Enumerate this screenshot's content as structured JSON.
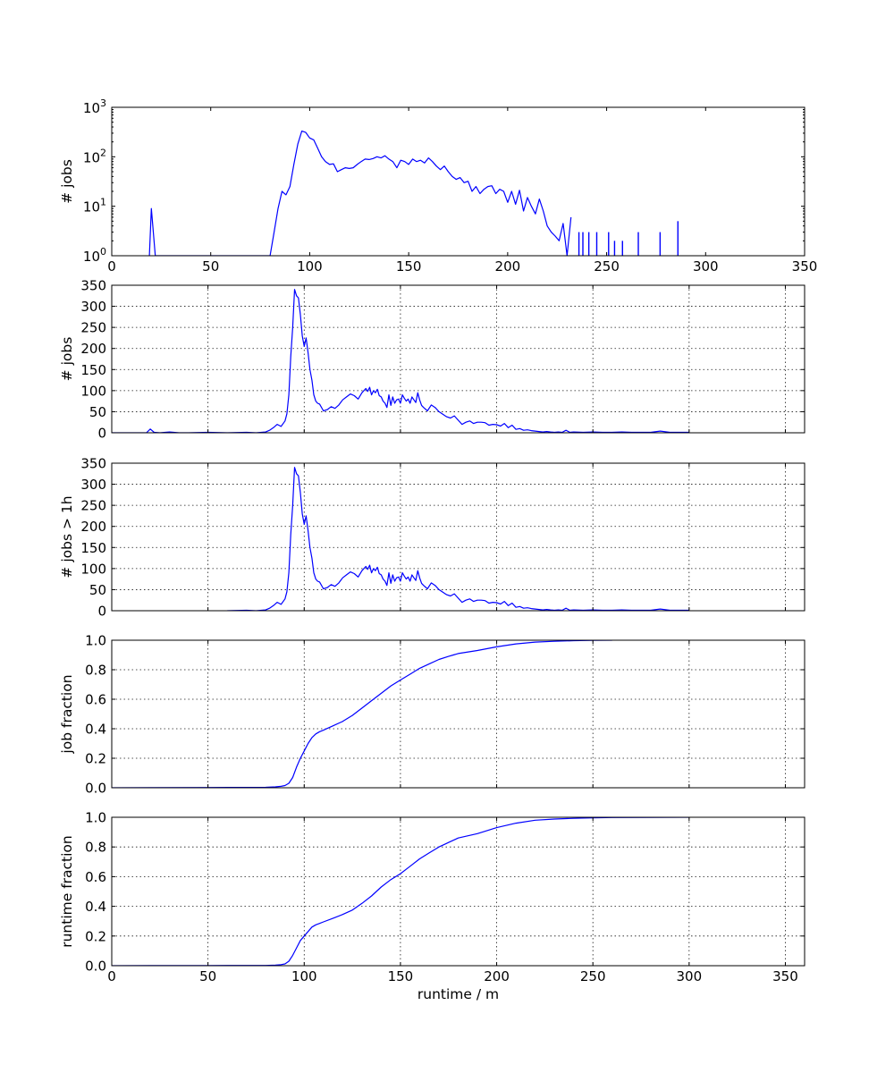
{
  "style": {
    "line_color": "#0000ff",
    "background": "#ffffff"
  },
  "chart_data": [
    {
      "type": "line",
      "id": "hist-log",
      "xlabel": "",
      "ylabel": "# jobs",
      "xlim": [
        0,
        350
      ],
      "ylim": [
        1,
        1000
      ],
      "yscale": "log",
      "grid": false,
      "xticks": [
        "0",
        "50",
        "100",
        "150",
        "200",
        "250",
        "300",
        "350"
      ],
      "yticks": [
        {
          "value": 1,
          "base": "10",
          "exp": "0"
        },
        {
          "value": 10,
          "base": "10",
          "exp": "1"
        },
        {
          "value": 100,
          "base": "10",
          "exp": "2"
        },
        {
          "value": 1000,
          "base": "10",
          "exp": "3"
        }
      ],
      "series": [
        {
          "x": [
            19,
            20,
            22,
            80,
            82,
            84,
            86,
            88,
            90,
            92,
            94,
            96,
            98,
            100,
            102,
            104,
            106,
            108,
            110,
            112,
            114,
            116,
            118,
            120,
            122,
            124,
            126,
            128,
            130,
            132,
            134,
            136,
            138,
            140,
            142,
            144,
            146,
            148,
            150,
            152,
            154,
            156,
            158,
            160,
            162,
            164,
            166,
            168,
            170,
            172,
            174,
            176,
            178,
            180,
            182,
            184,
            186,
            188,
            190,
            192,
            194,
            196,
            198,
            200,
            202,
            204,
            206,
            208,
            210,
            212,
            214,
            216,
            218,
            220,
            222,
            224,
            226,
            228,
            230,
            232
          ],
          "y": [
            1,
            9,
            1,
            1,
            3,
            9,
            20,
            17,
            25,
            70,
            180,
            330,
            310,
            240,
            220,
            150,
            100,
            80,
            70,
            72,
            50,
            55,
            60,
            58,
            60,
            70,
            80,
            90,
            88,
            92,
            100,
            95,
            105,
            90,
            80,
            60,
            85,
            80,
            70,
            90,
            80,
            85,
            75,
            95,
            80,
            65,
            55,
            65,
            50,
            40,
            35,
            38,
            30,
            32,
            20,
            25,
            18,
            22,
            25,
            26,
            18,
            22,
            20,
            12,
            20,
            11,
            21,
            8,
            15,
            10,
            7,
            14,
            8,
            4,
            3,
            2.5,
            2,
            4.5,
            1,
            6
          ]
        }
      ],
      "spikes": [
        {
          "x": 236,
          "y": 3
        },
        {
          "x": 238,
          "y": 3
        },
        {
          "x": 241,
          "y": 3
        },
        {
          "x": 245,
          "y": 3
        },
        {
          "x": 251,
          "y": 3
        },
        {
          "x": 254,
          "y": 2
        },
        {
          "x": 258,
          "y": 2
        },
        {
          "x": 266,
          "y": 3
        },
        {
          "x": 277,
          "y": 3
        },
        {
          "x": 286,
          "y": 5
        }
      ]
    },
    {
      "type": "line",
      "id": "hist-linear",
      "xlabel": "",
      "ylabel": "# jobs",
      "xlim": [
        0,
        360
      ],
      "ylim": [
        0,
        350
      ],
      "yscale": "linear",
      "grid": true,
      "xticks": [],
      "xgrid": [
        0,
        50,
        100,
        150,
        200,
        250,
        300,
        350
      ],
      "yticks": [
        0,
        50,
        100,
        150,
        200,
        250,
        300,
        350
      ],
      "series": [
        {
          "x": [
            0,
            18,
            20,
            22,
            25,
            30,
            35,
            40,
            50,
            60,
            70,
            75,
            80,
            82,
            84,
            86,
            88,
            90,
            91,
            92,
            93,
            94,
            95,
            96,
            97,
            98,
            99,
            100,
            101,
            102,
            103,
            104,
            105,
            106,
            107,
            108,
            110,
            112,
            114,
            116,
            118,
            120,
            122,
            124,
            126,
            128,
            130,
            132,
            133,
            134,
            135,
            136,
            137,
            138,
            139,
            140,
            141,
            142,
            143,
            144,
            145,
            146,
            147,
            148,
            149,
            150,
            151,
            152,
            153,
            154,
            155,
            156,
            157,
            158,
            159,
            160,
            161,
            162,
            164,
            166,
            168,
            170,
            172,
            174,
            176,
            178,
            180,
            182,
            184,
            186,
            188,
            190,
            192,
            194,
            196,
            198,
            200,
            202,
            204,
            206,
            208,
            210,
            212,
            214,
            216,
            218,
            220,
            222,
            224,
            226,
            228,
            230,
            232,
            234,
            236,
            238,
            240,
            245,
            250,
            255,
            260,
            265,
            270,
            275,
            280,
            285,
            290,
            300
          ],
          "y": [
            0,
            0,
            9,
            1,
            0,
            2,
            0,
            0,
            1,
            0,
            1,
            0,
            2,
            6,
            12,
            20,
            15,
            28,
            45,
            90,
            180,
            250,
            340,
            325,
            320,
            280,
            230,
            205,
            225,
            190,
            150,
            125,
            90,
            75,
            70,
            68,
            52,
            55,
            62,
            58,
            66,
            78,
            85,
            92,
            88,
            80,
            95,
            105,
            98,
            108,
            90,
            100,
            95,
            103,
            88,
            85,
            75,
            70,
            60,
            90,
            65,
            85,
            70,
            78,
            80,
            70,
            90,
            82,
            75,
            80,
            70,
            85,
            78,
            72,
            95,
            78,
            65,
            60,
            52,
            66,
            60,
            50,
            44,
            38,
            35,
            40,
            30,
            20,
            25,
            28,
            22,
            25,
            25,
            24,
            18,
            20,
            19,
            16,
            22,
            12,
            18,
            8,
            10,
            6,
            7,
            5,
            4,
            3,
            2,
            3,
            2,
            1,
            2,
            1,
            6,
            1,
            2,
            1,
            2,
            1,
            1,
            2,
            1,
            1,
            1,
            4,
            1,
            1
          ]
        }
      ]
    },
    {
      "type": "line",
      "id": "hist-over-1h",
      "xlabel": "",
      "ylabel": "# jobs > 1h",
      "xlim": [
        0,
        360
      ],
      "ylim": [
        0,
        350
      ],
      "yscale": "linear",
      "grid": true,
      "xticks": [],
      "xgrid": [
        0,
        50,
        100,
        150,
        200,
        250,
        300,
        350
      ],
      "yticks": [
        0,
        50,
        100,
        150,
        200,
        250,
        300,
        350
      ],
      "series": [
        {
          "x": [
            60,
            70,
            75,
            80,
            82,
            84,
            86,
            88,
            90,
            91,
            92,
            93,
            94,
            95,
            96,
            97,
            98,
            99,
            100,
            101,
            102,
            103,
            104,
            105,
            106,
            107,
            108,
            110,
            112,
            114,
            116,
            118,
            120,
            122,
            124,
            126,
            128,
            130,
            132,
            133,
            134,
            135,
            136,
            137,
            138,
            139,
            140,
            141,
            142,
            143,
            144,
            145,
            146,
            147,
            148,
            149,
            150,
            151,
            152,
            153,
            154,
            155,
            156,
            157,
            158,
            159,
            160,
            161,
            162,
            164,
            166,
            168,
            170,
            172,
            174,
            176,
            178,
            180,
            182,
            184,
            186,
            188,
            190,
            192,
            194,
            196,
            198,
            200,
            202,
            204,
            206,
            208,
            210,
            212,
            214,
            216,
            218,
            220,
            222,
            224,
            226,
            228,
            230,
            232,
            234,
            236,
            238,
            240,
            245,
            250,
            255,
            260,
            265,
            270,
            275,
            280,
            285,
            290,
            300
          ],
          "y": [
            0,
            1,
            0,
            2,
            6,
            12,
            20,
            15,
            28,
            45,
            90,
            180,
            250,
            340,
            325,
            320,
            280,
            230,
            205,
            225,
            190,
            150,
            125,
            90,
            75,
            70,
            68,
            52,
            55,
            62,
            58,
            66,
            78,
            85,
            92,
            88,
            80,
            95,
            105,
            98,
            108,
            90,
            100,
            95,
            103,
            88,
            85,
            75,
            70,
            60,
            90,
            65,
            85,
            70,
            78,
            80,
            70,
            90,
            82,
            75,
            80,
            70,
            85,
            78,
            72,
            95,
            78,
            65,
            60,
            52,
            66,
            60,
            50,
            44,
            38,
            35,
            40,
            30,
            20,
            25,
            28,
            22,
            25,
            25,
            24,
            18,
            20,
            19,
            16,
            22,
            12,
            18,
            8,
            10,
            6,
            7,
            5,
            4,
            3,
            2,
            3,
            2,
            1,
            2,
            1,
            6,
            1,
            2,
            1,
            2,
            1,
            1,
            2,
            1,
            1,
            1,
            4,
            1,
            1
          ]
        }
      ]
    },
    {
      "type": "line",
      "id": "job-fraction",
      "xlabel": "",
      "ylabel": "job fraction",
      "xlim": [
        0,
        360
      ],
      "ylim": [
        0,
        1
      ],
      "yscale": "linear",
      "grid": true,
      "xticks": [],
      "xgrid": [
        0,
        50,
        100,
        150,
        200,
        250,
        300,
        350
      ],
      "yticks": [
        "0.0",
        "0.2",
        "0.4",
        "0.6",
        "0.8",
        "1.0"
      ],
      "series": [
        {
          "x": [
            0,
            20,
            50,
            80,
            85,
            88,
            90,
            92,
            94,
            96,
            98,
            100,
            102,
            104,
            106,
            108,
            110,
            115,
            120,
            125,
            130,
            135,
            140,
            145,
            150,
            155,
            160,
            165,
            170,
            175,
            180,
            190,
            200,
            210,
            220,
            230,
            240,
            250,
            260
          ],
          "y": [
            0,
            0.001,
            0.002,
            0.003,
            0.006,
            0.01,
            0.015,
            0.03,
            0.07,
            0.14,
            0.2,
            0.25,
            0.3,
            0.34,
            0.365,
            0.38,
            0.39,
            0.42,
            0.45,
            0.49,
            0.54,
            0.59,
            0.64,
            0.69,
            0.73,
            0.77,
            0.81,
            0.84,
            0.87,
            0.89,
            0.91,
            0.93,
            0.955,
            0.975,
            0.987,
            0.993,
            0.997,
            0.999,
            1
          ]
        }
      ]
    },
    {
      "type": "line",
      "id": "runtime-fraction",
      "xlabel": "runtime / m",
      "ylabel": "runtime fraction",
      "xlim": [
        0,
        360
      ],
      "ylim": [
        0,
        1
      ],
      "yscale": "linear",
      "grid": true,
      "xticks": [
        "0",
        "50",
        "100",
        "150",
        "200",
        "250",
        "300",
        "350"
      ],
      "xgrid": [
        0,
        50,
        100,
        150,
        200,
        250,
        300,
        350
      ],
      "yticks": [
        "0.0",
        "0.2",
        "0.4",
        "0.6",
        "0.8",
        "1.0"
      ],
      "series": [
        {
          "x": [
            0,
            20,
            50,
            80,
            85,
            88,
            90,
            92,
            94,
            96,
            98,
            100,
            102,
            104,
            106,
            108,
            110,
            115,
            120,
            125,
            130,
            135,
            140,
            145,
            150,
            155,
            160,
            165,
            170,
            175,
            180,
            190,
            200,
            210,
            220,
            230,
            240,
            250,
            260,
            280,
            300
          ],
          "y": [
            0,
            0.0005,
            0.001,
            0.002,
            0.004,
            0.007,
            0.012,
            0.03,
            0.07,
            0.12,
            0.17,
            0.2,
            0.23,
            0.26,
            0.275,
            0.285,
            0.295,
            0.32,
            0.345,
            0.375,
            0.42,
            0.47,
            0.53,
            0.58,
            0.62,
            0.67,
            0.72,
            0.76,
            0.8,
            0.83,
            0.86,
            0.89,
            0.93,
            0.96,
            0.98,
            0.988,
            0.993,
            0.996,
            0.998,
            0.999,
            1
          ]
        }
      ]
    }
  ]
}
